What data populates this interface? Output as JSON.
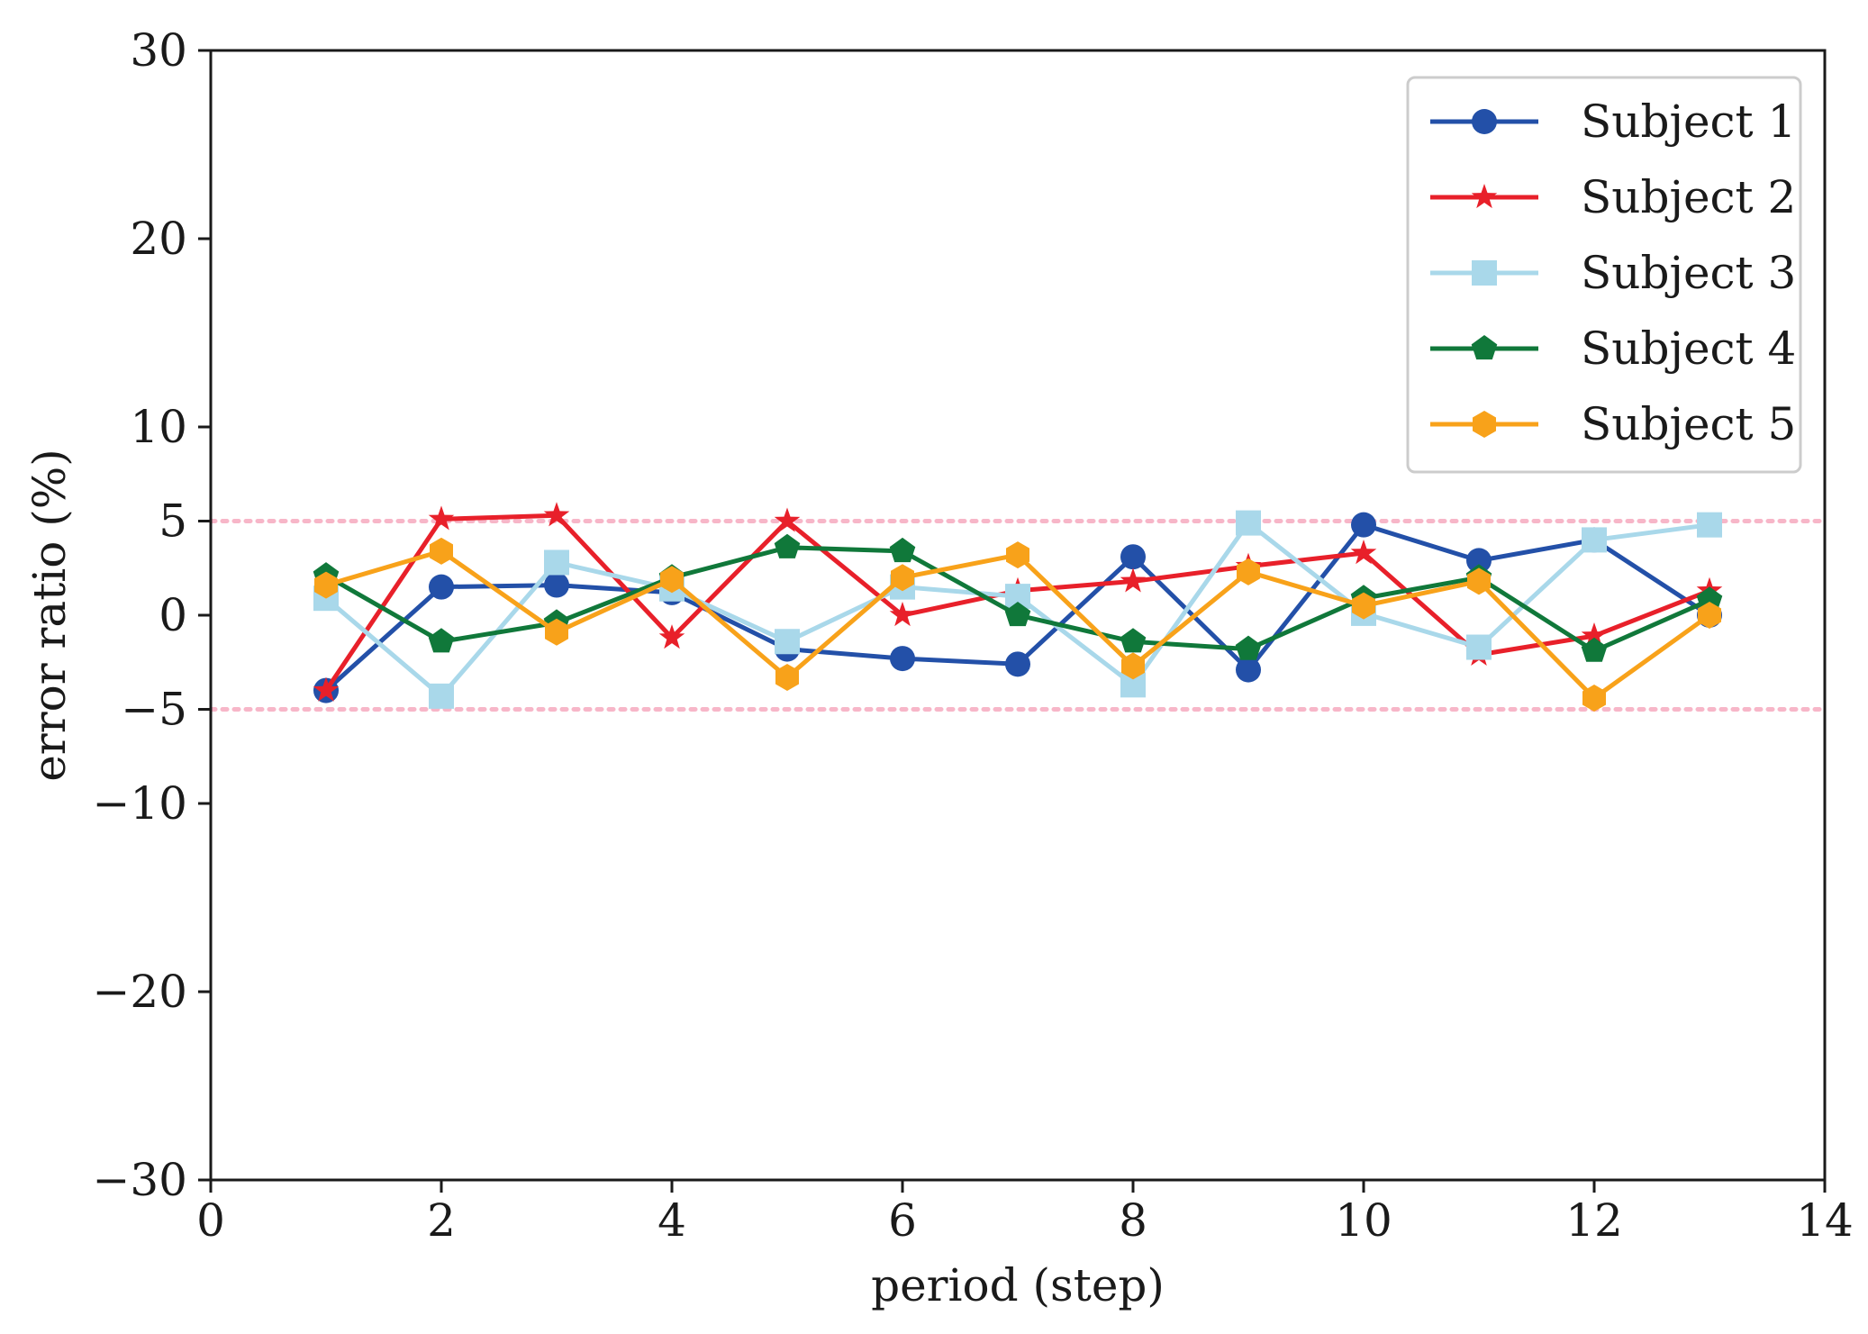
{
  "chart_data": {
    "type": "line",
    "title": "",
    "xlabel": "period (step)",
    "ylabel": "error ratio (%)",
    "xlim": [
      0,
      14
    ],
    "ylim": [
      -30,
      30
    ],
    "x_ticks": [
      0,
      2,
      4,
      6,
      8,
      10,
      12,
      14
    ],
    "x_tick_labels": [
      "0",
      "2",
      "4",
      "6",
      "8",
      "10",
      "12",
      "14"
    ],
    "y_ticks": [
      -30,
      -20,
      -10,
      -5,
      0,
      5,
      10,
      20,
      30
    ],
    "y_tick_labels": [
      "−30",
      "−20",
      "−10",
      "−5",
      "0",
      "5",
      "10",
      "20",
      "30"
    ],
    "reference_lines": [
      {
        "y": 5,
        "color": "#f7b6c8",
        "style": "dotted"
      },
      {
        "y": -5,
        "color": "#f7b6c8",
        "style": "dotted"
      }
    ],
    "legend_position": "top-right",
    "x": [
      1,
      2,
      3,
      4,
      5,
      6,
      7,
      8,
      9,
      10,
      11,
      12,
      13
    ],
    "series": [
      {
        "name": "Subject 1",
        "color": "#2350a8",
        "marker": "circle",
        "values": [
          -4.0,
          1.5,
          1.6,
          1.2,
          -1.8,
          -2.3,
          -2.6,
          3.1,
          -2.9,
          4.8,
          2.9,
          4.0,
          0.0
        ]
      },
      {
        "name": "Subject 2",
        "color": "#e8202a",
        "marker": "star",
        "values": [
          -4.0,
          5.1,
          5.3,
          -1.2,
          5.0,
          0.0,
          1.3,
          1.8,
          2.6,
          3.3,
          -2.1,
          -1.1,
          1.3
        ]
      },
      {
        "name": "Subject 3",
        "color": "#a9d8ea",
        "marker": "square",
        "values": [
          0.9,
          -4.3,
          2.8,
          1.4,
          -1.4,
          1.5,
          1.0,
          -3.7,
          4.9,
          0.1,
          -1.7,
          4.0,
          4.8
        ]
      },
      {
        "name": "Subject 4",
        "color": "#10783a",
        "marker": "pentagon",
        "values": [
          2.1,
          -1.4,
          -0.4,
          2.0,
          3.6,
          3.4,
          0.0,
          -1.4,
          -1.8,
          0.9,
          2.0,
          -1.9,
          0.8
        ]
      },
      {
        "name": "Subject 5",
        "color": "#f8a21a",
        "marker": "hexagon",
        "values": [
          1.6,
          3.4,
          -0.9,
          1.9,
          -3.3,
          2.0,
          3.2,
          -2.7,
          2.3,
          0.5,
          1.8,
          -4.4,
          0.0
        ]
      }
    ]
  }
}
